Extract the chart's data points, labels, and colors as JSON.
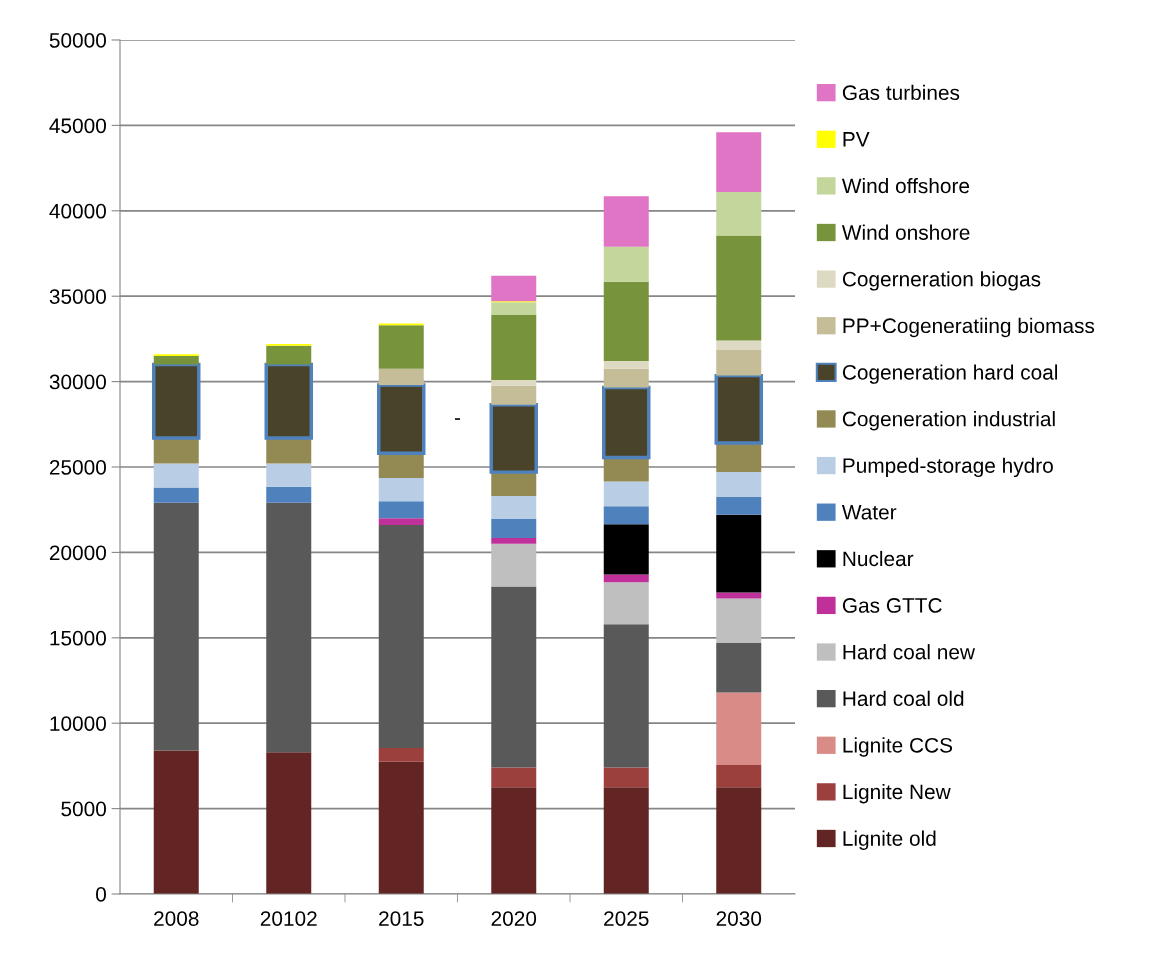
{
  "chart_data": {
    "type": "bar",
    "stacked": true,
    "categories": [
      "2008",
      "20102",
      "2015",
      "2020",
      "2025",
      "2030"
    ],
    "series": [
      {
        "name": "Lignite old",
        "color": "#632523",
        "values": [
          8400,
          8300,
          7750,
          6250,
          6250,
          6250
        ]
      },
      {
        "name": "Lignite New",
        "color": "#9b403d",
        "values": [
          0,
          0,
          800,
          1150,
          1150,
          1300
        ]
      },
      {
        "name": "Lignite CCS",
        "color": "#d98b87",
        "values": [
          0,
          0,
          0,
          0,
          0,
          4250
        ]
      },
      {
        "name": "Hard coal old",
        "color": "#595959",
        "values": [
          14500,
          14600,
          13050,
          10600,
          8400,
          2900
        ]
      },
      {
        "name": "Hard coal new",
        "color": "#bfbfbf",
        "values": [
          0,
          0,
          0,
          2500,
          2450,
          2600
        ]
      },
      {
        "name": "Gas GTTC",
        "color": "#c0309a",
        "values": [
          0,
          0,
          400,
          350,
          450,
          350
        ]
      },
      {
        "name": "Nuclear",
        "color": "#000000",
        "values": [
          0,
          0,
          0,
          0,
          2950,
          4550
        ]
      },
      {
        "name": "Water",
        "color": "#4f81bd",
        "values": [
          900,
          950,
          1000,
          1100,
          1050,
          1050
        ]
      },
      {
        "name": "Pumped-storage hydro",
        "color": "#b9cde5",
        "values": [
          1400,
          1350,
          1350,
          1350,
          1450,
          1450
        ]
      },
      {
        "name": "Cogeneration industrial",
        "color": "#938953",
        "values": [
          1500,
          1500,
          1450,
          1400,
          1400,
          1700
        ]
      },
      {
        "name": "Cogeneration hard coal",
        "color": "#494429",
        "values": [
          4300,
          4300,
          4000,
          3950,
          4100,
          3950
        ]
      },
      {
        "name": "PP+Cogeneratiing biomass",
        "color": "#c4bd97",
        "values": [
          0,
          0,
          950,
          1100,
          1100,
          1500
        ]
      },
      {
        "name": "Cogerneration biogas",
        "color": "#ddd9c3",
        "values": [
          0,
          0,
          0,
          350,
          450,
          550
        ]
      },
      {
        "name": "Wind onshore",
        "color": "#77933c",
        "values": [
          500,
          1100,
          2550,
          3800,
          4650,
          6150
        ]
      },
      {
        "name": "Wind offshore",
        "color": "#c3d69b",
        "values": [
          0,
          0,
          0,
          750,
          2050,
          2550
        ]
      },
      {
        "name": "PV",
        "color": "#ffff00",
        "values": [
          100,
          100,
          100,
          50,
          0,
          0
        ]
      },
      {
        "name": "Gas turbines",
        "color": "#e075c5",
        "values": [
          0,
          0,
          0,
          1500,
          2950,
          3500
        ]
      }
    ],
    "ylim": [
      0,
      50000
    ],
    "yticks": [
      0,
      5000,
      10000,
      15000,
      20000,
      25000,
      30000,
      35000,
      40000,
      45000,
      50000
    ],
    "grid": "y",
    "legend": "right",
    "annotations": [
      "-"
    ]
  }
}
